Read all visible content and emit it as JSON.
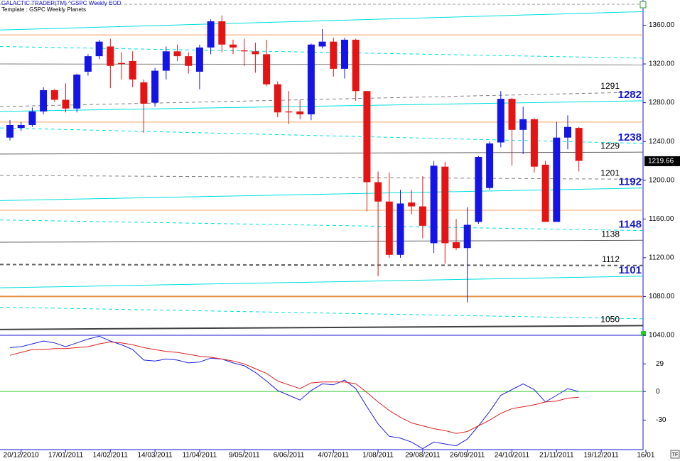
{
  "chart_data": [
    {
      "type": "candlestick",
      "title": "GALACTIC TRADER(TM)   ^GSPC Weekly EOD",
      "subtitle": "Template : GSPC Weekly Planets",
      "categories": [
        null,
        "20/12/2010",
        null,
        null,
        null,
        "17/01/2011",
        null,
        null,
        null,
        "14/02/2011",
        null,
        null,
        null,
        "14/03/2011",
        null,
        null,
        null,
        "11/04/2011",
        null,
        null,
        null,
        "9/05/2011",
        null,
        null,
        null,
        "6/06/2011",
        null,
        null,
        null,
        "4/07/2011",
        null,
        null,
        null,
        "1/08/2011",
        null,
        null,
        null,
        "29/08/2011",
        null,
        null,
        null,
        "26/09/2011",
        null,
        null,
        null,
        "24/10/2011",
        null,
        null,
        null,
        "21/11/2011",
        null,
        null,
        null,
        "19/12/2011",
        null,
        null,
        null,
        "16/01"
      ],
      "open": [
        1244,
        1254,
        1257,
        1271,
        1293,
        1283,
        1274,
        1312,
        1328,
        1338,
        1321,
        1323,
        1301,
        1280,
        1313,
        1333,
        1328,
        1312,
        1337,
        1364,
        1340,
        1334,
        1333,
        1330,
        1299,
        1271,
        1271,
        1268,
        1338,
        1343,
        1315,
        1345,
        1292,
        1198,
        1178,
        1123,
        1177,
        1173,
        1135,
        1214,
        1136,
        1130,
        1157,
        1192,
        1239,
        1284,
        1252,
        1263,
        1216,
        1157,
        1244,
        1254,
        null,
        null,
        null,
        null,
        null,
        null
      ],
      "high": [
        1262,
        1260,
        1275,
        1296,
        1294,
        1300,
        1310,
        1330,
        1345,
        1346,
        1332,
        1333,
        1304,
        1316,
        1338,
        1340,
        1332,
        1340,
        1366,
        1370,
        1345,
        1346,
        1342,
        1345,
        1302,
        1292,
        1283,
        1341,
        1356,
        1347,
        1347,
        1346,
        1292,
        1209,
        1208,
        1190,
        1190,
        1204,
        1220,
        1219,
        1160,
        1172,
        1225,
        1240,
        1292,
        1285,
        1276,
        1264,
        1220,
        1260,
        1267,
        1255,
        null,
        null,
        null,
        null,
        null,
        null
      ],
      "low": [
        1241,
        1251,
        1255,
        1268,
        1281,
        1270,
        1270,
        1308,
        1325,
        1295,
        1304,
        1296,
        1249,
        1276,
        1304,
        1323,
        1310,
        1294,
        1330,
        1332,
        1330,
        1318,
        1311,
        1297,
        1265,
        1258,
        1263,
        1262,
        1336,
        1307,
        1305,
        1282,
        1168,
        1101,
        1120,
        1120,
        1165,
        1140,
        1125,
        1114,
        1128,
        1074,
        1155,
        1190,
        1234,
        1215,
        1227,
        1208,
        1157,
        1157,
        1232,
        1209,
        null,
        null,
        null,
        null,
        null,
        null
      ],
      "close": [
        1257,
        1257,
        1271,
        1293,
        1283,
        1274,
        1309,
        1328,
        1343,
        1318,
        1320,
        1304,
        1279,
        1313,
        1333,
        1328,
        1318,
        1337,
        1364,
        1340,
        1337,
        1333,
        1330,
        1299,
        1270,
        1270,
        1268,
        1340,
        1343,
        1315,
        1345,
        1292,
        1198,
        1178,
        1123,
        1176,
        1173,
        1153,
        1215,
        1135,
        1130,
        1154,
        1224,
        1238,
        1284,
        1252,
        1263,
        1214,
        1157,
        1244,
        1255,
        1220,
        null,
        null,
        null,
        null,
        null,
        null
      ],
      "up_color": "#1414e6",
      "down_color": "#e41414",
      "ylim": [
        1040,
        1386
      ],
      "yticks": [
        {
          "value": 1040,
          "label": "1040.00"
        },
        {
          "value": 1080,
          "label": "1080.00"
        },
        {
          "value": 1120,
          "label": "1120.00"
        },
        {
          "value": 1160,
          "label": "1160.00"
        },
        {
          "value": 1200,
          "label": "1200.00"
        },
        {
          "value": 1240,
          "label": "1240.00"
        },
        {
          "value": 1280,
          "label": "1280.00"
        },
        {
          "value": 1320,
          "label": "1320.00"
        },
        {
          "value": 1360,
          "label": "1360.00"
        }
      ],
      "last_price": 1219.66,
      "lines": [
        {
          "start": 1355,
          "end": 1374,
          "color": "#00dede",
          "dash": false,
          "width": 1
        },
        {
          "start": 1350,
          "end": 1350,
          "color": "#f0a060",
          "dash": false,
          "width": 1
        },
        {
          "start": 1338,
          "end": 1326,
          "color": "#00dede",
          "dash": true,
          "width": 1
        },
        {
          "start": 1320,
          "end": 1319,
          "color": "#808080",
          "dash": false,
          "width": 1
        },
        {
          "start": 1276,
          "end": 1291,
          "color": "#808080",
          "dash": true,
          "width": 1,
          "label_color": "#000000"
        },
        {
          "start": 1271,
          "end": 1282,
          "color": "#00dede",
          "dash": false,
          "width": 1,
          "label_color": "#1a1acc"
        },
        {
          "start": 1260,
          "end": 1260,
          "color": "#f0a060",
          "dash": false,
          "width": 1
        },
        {
          "start": 1254,
          "end": 1238,
          "color": "#00dede",
          "dash": true,
          "width": 1,
          "label_color": "#1a1acc"
        },
        {
          "start": 1227,
          "end": 1229,
          "color": "#606060",
          "dash": false,
          "width": 1,
          "label_color": "#000000"
        },
        {
          "start": 1205,
          "end": 1201,
          "color": "#808080",
          "dash": true,
          "width": 1,
          "label_color": "#000000"
        },
        {
          "start": 1179,
          "end": 1192,
          "color": "#00dede",
          "dash": false,
          "width": 1,
          "label_color": "#1a1acc"
        },
        {
          "start": 1169,
          "end": 1169,
          "color": "#f0a060",
          "dash": false,
          "width": 1
        },
        {
          "start": 1159,
          "end": 1148,
          "color": "#00dede",
          "dash": true,
          "width": 1,
          "label_color": "#1a1acc"
        },
        {
          "start": 1136,
          "end": 1138,
          "color": "#606060",
          "dash": false,
          "width": 1,
          "label_color": "#000000"
        },
        {
          "start": 1113,
          "end": 1112,
          "color": "#606060",
          "dash": true,
          "width": 2,
          "label_color": "#000000"
        },
        {
          "start": 1089,
          "end": 1101,
          "color": "#00dede",
          "dash": false,
          "width": 1,
          "label_color": "#1a1acc"
        },
        {
          "start": 1080,
          "end": 1080,
          "color": "#e89040",
          "dash": false,
          "width": 2
        },
        {
          "start": 1069,
          "end": 1057,
          "color": "#00dede",
          "dash": true,
          "width": 1
        },
        {
          "start": 1046,
          "end": 1050,
          "color": "#404040",
          "dash": false,
          "width": 2,
          "label_color": "#000000"
        }
      ]
    },
    {
      "type": "line",
      "ylim": [
        -61,
        59
      ],
      "yticks": [
        29,
        0,
        -30
      ],
      "reference_line": 0,
      "reference_color": "#33cc33",
      "series": [
        {
          "color": "#2222dd",
          "values": [
            46,
            47,
            50,
            53,
            51,
            47,
            51,
            55,
            58,
            53,
            49,
            44,
            33,
            32,
            34,
            33,
            30,
            31,
            35,
            34,
            30,
            27,
            20,
            11,
            1,
            -4,
            -9,
            1,
            8,
            7,
            12,
            3,
            -16,
            -34,
            -47,
            -49,
            -53,
            -60,
            -53,
            -55,
            -57,
            -50,
            -36,
            -21,
            -4,
            2,
            8,
            2,
            -11,
            -4,
            3,
            0,
            null,
            null,
            null,
            null,
            null,
            null
          ]
        },
        {
          "color": "#dd2222",
          "values": [
            38,
            41,
            44,
            44,
            45,
            45,
            46,
            47,
            50,
            52,
            51,
            49,
            46,
            44,
            42,
            41,
            39,
            37,
            36,
            34,
            32,
            29,
            24,
            19,
            11,
            7,
            3,
            9,
            10,
            10,
            10,
            8,
            -1,
            -11,
            -20,
            -27,
            -33,
            -36,
            -39,
            -41,
            -44,
            -42,
            -36,
            -30,
            -23,
            -18,
            -16,
            -14,
            -11,
            -10,
            -7,
            -6,
            null,
            null,
            null,
            null,
            null,
            null
          ]
        }
      ]
    }
  ]
}
